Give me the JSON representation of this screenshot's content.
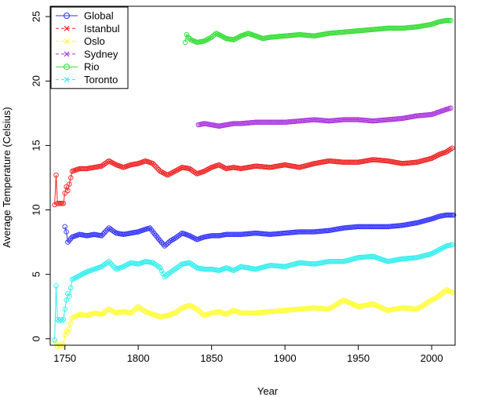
{
  "chart_data": {
    "type": "line",
    "title": "",
    "xlabel": "Year",
    "ylabel": "Average Temperature (Celsius)",
    "xlim": [
      1740,
      2016
    ],
    "ylim": [
      -0.5,
      25.8
    ],
    "x_ticks": [
      1750,
      1800,
      1850,
      1900,
      1950,
      2000
    ],
    "y_ticks": [
      0,
      5,
      10,
      15,
      20,
      25
    ],
    "grid": false,
    "legend_position": "top-left",
    "series": [
      {
        "name": "Global",
        "color": "#3333ff",
        "marker": "o",
        "x": [
          1750,
          1751,
          1752,
          1755,
          1760,
          1765,
          1770,
          1775,
          1780,
          1785,
          1790,
          1795,
          1800,
          1805,
          1808,
          1810,
          1815,
          1818,
          1822,
          1825,
          1830,
          1835,
          1840,
          1845,
          1850,
          1855,
          1860,
          1870,
          1880,
          1890,
          1900,
          1910,
          1920,
          1930,
          1940,
          1950,
          1960,
          1970,
          1980,
          1990,
          2000,
          2005,
          2010,
          2015
        ],
        "y": [
          8.7,
          8.3,
          7.5,
          7.9,
          8.1,
          8.0,
          8.1,
          8.0,
          8.6,
          8.2,
          8.1,
          8.2,
          8.3,
          8.5,
          8.6,
          8.3,
          7.6,
          7.2,
          7.6,
          7.8,
          8.2,
          8.0,
          7.7,
          7.9,
          8.0,
          8.0,
          8.1,
          8.1,
          8.2,
          8.1,
          8.2,
          8.3,
          8.3,
          8.4,
          8.6,
          8.7,
          8.7,
          8.7,
          8.8,
          9.0,
          9.3,
          9.5,
          9.6,
          9.6
        ]
      },
      {
        "name": "Istanbul",
        "color": "#ee2222",
        "marker": "o",
        "x": [
          1743,
          1744,
          1745,
          1746,
          1747,
          1748,
          1749,
          1750,
          1751,
          1752,
          1753,
          1755,
          1760,
          1765,
          1770,
          1775,
          1780,
          1785,
          1790,
          1795,
          1800,
          1805,
          1810,
          1815,
          1820,
          1825,
          1830,
          1835,
          1840,
          1845,
          1850,
          1855,
          1860,
          1865,
          1870,
          1880,
          1890,
          1900,
          1910,
          1920,
          1930,
          1940,
          1950,
          1960,
          1970,
          1980,
          1990,
          2000,
          2005,
          2010,
          2014
        ],
        "y": [
          10.4,
          12.7,
          10.5,
          10.5,
          10.5,
          10.5,
          10.5,
          11.3,
          11.8,
          11.5,
          12.0,
          13.0,
          13.2,
          13.2,
          13.3,
          13.4,
          13.8,
          13.5,
          13.3,
          13.5,
          13.6,
          13.8,
          13.6,
          13.0,
          12.7,
          13.0,
          13.3,
          13.2,
          12.8,
          13.0,
          13.3,
          13.5,
          13.2,
          13.3,
          13.2,
          13.4,
          13.3,
          13.5,
          13.3,
          13.6,
          13.8,
          13.7,
          13.7,
          13.9,
          13.8,
          13.6,
          13.7,
          14.0,
          14.3,
          14.5,
          14.8
        ]
      },
      {
        "name": "Oslo",
        "color": "#ffff33",
        "marker": "o",
        "x": [
          1743,
          1744,
          1745,
          1746,
          1747,
          1748,
          1749,
          1750,
          1751,
          1752,
          1753,
          1755,
          1760,
          1765,
          1770,
          1775,
          1780,
          1785,
          1790,
          1795,
          1800,
          1805,
          1810,
          1815,
          1820,
          1825,
          1830,
          1835,
          1840,
          1845,
          1850,
          1855,
          1860,
          1865,
          1870,
          1880,
          1890,
          1900,
          1910,
          1920,
          1930,
          1940,
          1950,
          1960,
          1970,
          1980,
          1990,
          2000,
          2005,
          2010,
          2014
        ],
        "y": [
          -0.1,
          -0.3,
          -0.6,
          -0.5,
          -0.6,
          -0.4,
          -0.5,
          0.3,
          0.6,
          0.5,
          0.8,
          1.6,
          1.9,
          1.8,
          2.0,
          1.9,
          2.3,
          2.0,
          2.1,
          2.0,
          2.5,
          2.1,
          1.9,
          1.7,
          1.8,
          2.0,
          2.4,
          2.6,
          2.3,
          1.8,
          2.0,
          2.1,
          1.9,
          2.2,
          2.0,
          2.0,
          2.1,
          2.2,
          2.3,
          2.4,
          2.3,
          3.0,
          2.5,
          2.7,
          2.2,
          2.4,
          2.3,
          3.0,
          3.3,
          3.8,
          3.6
        ]
      },
      {
        "name": "Sydney",
        "color": "#aa33dd",
        "marker": "x",
        "x": [
          1841,
          1845,
          1850,
          1855,
          1860,
          1865,
          1870,
          1880,
          1890,
          1900,
          1910,
          1920,
          1930,
          1940,
          1950,
          1960,
          1970,
          1980,
          1990,
          2000,
          2005,
          2010,
          2013
        ],
        "y": [
          16.6,
          16.7,
          16.6,
          16.5,
          16.6,
          16.7,
          16.7,
          16.8,
          16.8,
          16.8,
          16.9,
          17.0,
          16.9,
          17.0,
          17.0,
          16.9,
          17.0,
          17.1,
          17.3,
          17.4,
          17.6,
          17.8,
          17.9
        ]
      },
      {
        "name": "Rio",
        "color": "#33dd33",
        "marker": "o",
        "x": [
          1832,
          1833,
          1834,
          1836,
          1840,
          1845,
          1850,
          1853,
          1855,
          1860,
          1865,
          1870,
          1875,
          1880,
          1885,
          1890,
          1900,
          1910,
          1920,
          1930,
          1940,
          1950,
          1960,
          1970,
          1980,
          1990,
          2000,
          2005,
          2010,
          2013
        ],
        "y": [
          23.0,
          23.6,
          23.4,
          23.2,
          23.0,
          23.1,
          23.4,
          23.7,
          23.6,
          23.3,
          23.2,
          23.5,
          23.7,
          23.5,
          23.3,
          23.4,
          23.5,
          23.6,
          23.5,
          23.7,
          23.8,
          23.9,
          24.0,
          24.1,
          24.1,
          24.2,
          24.4,
          24.6,
          24.7,
          24.7
        ]
      },
      {
        "name": "Toronto",
        "color": "#33eeee",
        "marker": "x",
        "x": [
          1743,
          1744,
          1745,
          1746,
          1747,
          1748,
          1749,
          1750,
          1751,
          1752,
          1753,
          1755,
          1760,
          1765,
          1770,
          1775,
          1780,
          1785,
          1790,
          1795,
          1800,
          1805,
          1810,
          1815,
          1818,
          1820,
          1825,
          1830,
          1835,
          1840,
          1845,
          1850,
          1855,
          1860,
          1865,
          1870,
          1880,
          1890,
          1900,
          1910,
          1920,
          1930,
          1940,
          1950,
          1960,
          1970,
          1980,
          1990,
          2000,
          2005,
          2010,
          2014
        ],
        "y": [
          -0.1,
          4.1,
          1.5,
          1.4,
          1.5,
          1.4,
          1.5,
          2.3,
          3.0,
          3.5,
          3.3,
          4.6,
          4.9,
          5.2,
          5.4,
          5.6,
          6.0,
          5.4,
          5.6,
          5.9,
          5.8,
          6.0,
          5.9,
          5.5,
          4.8,
          5.0,
          5.4,
          5.8,
          5.9,
          5.5,
          5.4,
          5.4,
          5.3,
          5.5,
          5.3,
          5.6,
          5.4,
          5.7,
          5.6,
          5.9,
          5.8,
          6.0,
          6.0,
          6.3,
          6.4,
          6.0,
          6.2,
          6.3,
          6.6,
          6.9,
          7.2,
          7.3
        ]
      }
    ]
  }
}
